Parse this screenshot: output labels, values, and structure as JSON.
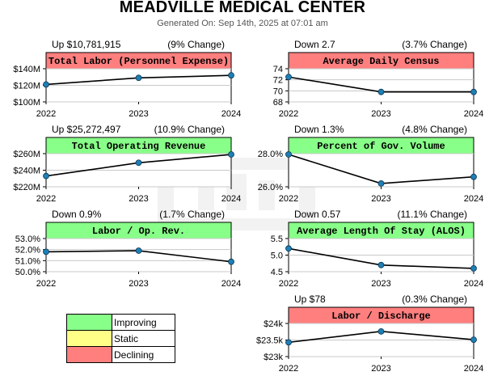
{
  "header": {
    "title": "MEADVILLE MEDICAL CENTER",
    "generated": "Generated On: Sep 14th, 2025 at 07:01 am"
  },
  "colors": {
    "improving": "#88ff88",
    "static": "#ffff88",
    "declining": "#ff7f7f",
    "line": "#000000",
    "point": "#1e7fb5"
  },
  "legend": {
    "items": [
      {
        "label": "Improving",
        "color": "#88ff88"
      },
      {
        "label": "Static",
        "color": "#ffff88"
      },
      {
        "label": "Declining",
        "color": "#ff7f7f"
      }
    ]
  },
  "chart_data": [
    {
      "type": "line",
      "title": "Total Labor (Personnel Expense)",
      "summary_left": "Up $10,781,915",
      "summary_right": "(9% Change)",
      "status": "declining",
      "categories": [
        "2022",
        "2023",
        "2024"
      ],
      "values": [
        121.0,
        129.0,
        132.0
      ],
      "ylim": [
        100,
        140
      ],
      "yticks": [
        100,
        120,
        140
      ],
      "ytick_labels": [
        "$100M",
        "$120M",
        "$140M"
      ]
    },
    {
      "type": "line",
      "title": "Average Daily Census",
      "summary_left": "Down 2.7",
      "summary_right": "(3.7% Change)",
      "status": "declining",
      "categories": [
        "2022",
        "2023",
        "2024"
      ],
      "values": [
        72.5,
        69.8,
        69.8
      ],
      "ylim": [
        68,
        74
      ],
      "yticks": [
        68,
        70,
        72,
        74
      ],
      "ytick_labels": [
        "68",
        "70",
        "72",
        "74"
      ]
    },
    {
      "type": "line",
      "title": "Total Operating Revenue",
      "summary_left": "Up $25,272,497",
      "summary_right": "(10.9% Change)",
      "status": "improving",
      "categories": [
        "2022",
        "2023",
        "2024"
      ],
      "values": [
        233.0,
        249.0,
        259.0
      ],
      "ylim": [
        220,
        260
      ],
      "yticks": [
        220,
        240,
        260
      ],
      "ytick_labels": [
        "$220M",
        "$240M",
        "$260M"
      ]
    },
    {
      "type": "line",
      "title": "Percent of Gov. Volume",
      "summary_left": "Down 1.3%",
      "summary_right": "(4.8% Change)",
      "status": "improving",
      "categories": [
        "2022",
        "2023",
        "2024"
      ],
      "values": [
        27.95,
        26.2,
        26.6
      ],
      "ylim": [
        26.0,
        28.0
      ],
      "yticks": [
        26.0,
        28.0
      ],
      "ytick_labels": [
        "26.0%",
        "28.0%"
      ]
    },
    {
      "type": "line",
      "title": "Labor / Op. Rev.",
      "summary_left": "Down 0.9%",
      "summary_right": "(1.7% Change)",
      "status": "improving",
      "categories": [
        "2022",
        "2023",
        "2024"
      ],
      "values": [
        51.8,
        51.9,
        50.9
      ],
      "ylim": [
        50.0,
        53.0
      ],
      "yticks": [
        50.0,
        51.0,
        52.0,
        53.0
      ],
      "ytick_labels": [
        "50.0%",
        "51.0%",
        "52.0%",
        "53.0%"
      ]
    },
    {
      "type": "line",
      "title": "Average Length Of Stay (ALOS)",
      "summary_left": "Down 0.57",
      "summary_right": "(11.1% Change)",
      "status": "improving",
      "categories": [
        "2022",
        "2023",
        "2024"
      ],
      "values": [
        5.2,
        4.7,
        4.6
      ],
      "ylim": [
        4.5,
        5.5
      ],
      "yticks": [
        4.5,
        5.0,
        5.5
      ],
      "ytick_labels": [
        "4.5",
        "5.0",
        "5.5"
      ]
    },
    {
      "type": "line",
      "title": "Labor / Discharge",
      "summary_left": "Up $78",
      "summary_right": "(0.3% Change)",
      "status": "declining",
      "categories": [
        "2022",
        "2023",
        "2024"
      ],
      "values": [
        23.43,
        23.76,
        23.51
      ],
      "ylim": [
        23.0,
        24.0
      ],
      "yticks": [
        23.0,
        23.5,
        24.0
      ],
      "ytick_labels": [
        "$23k",
        "$23.5k",
        "$24k"
      ]
    }
  ]
}
